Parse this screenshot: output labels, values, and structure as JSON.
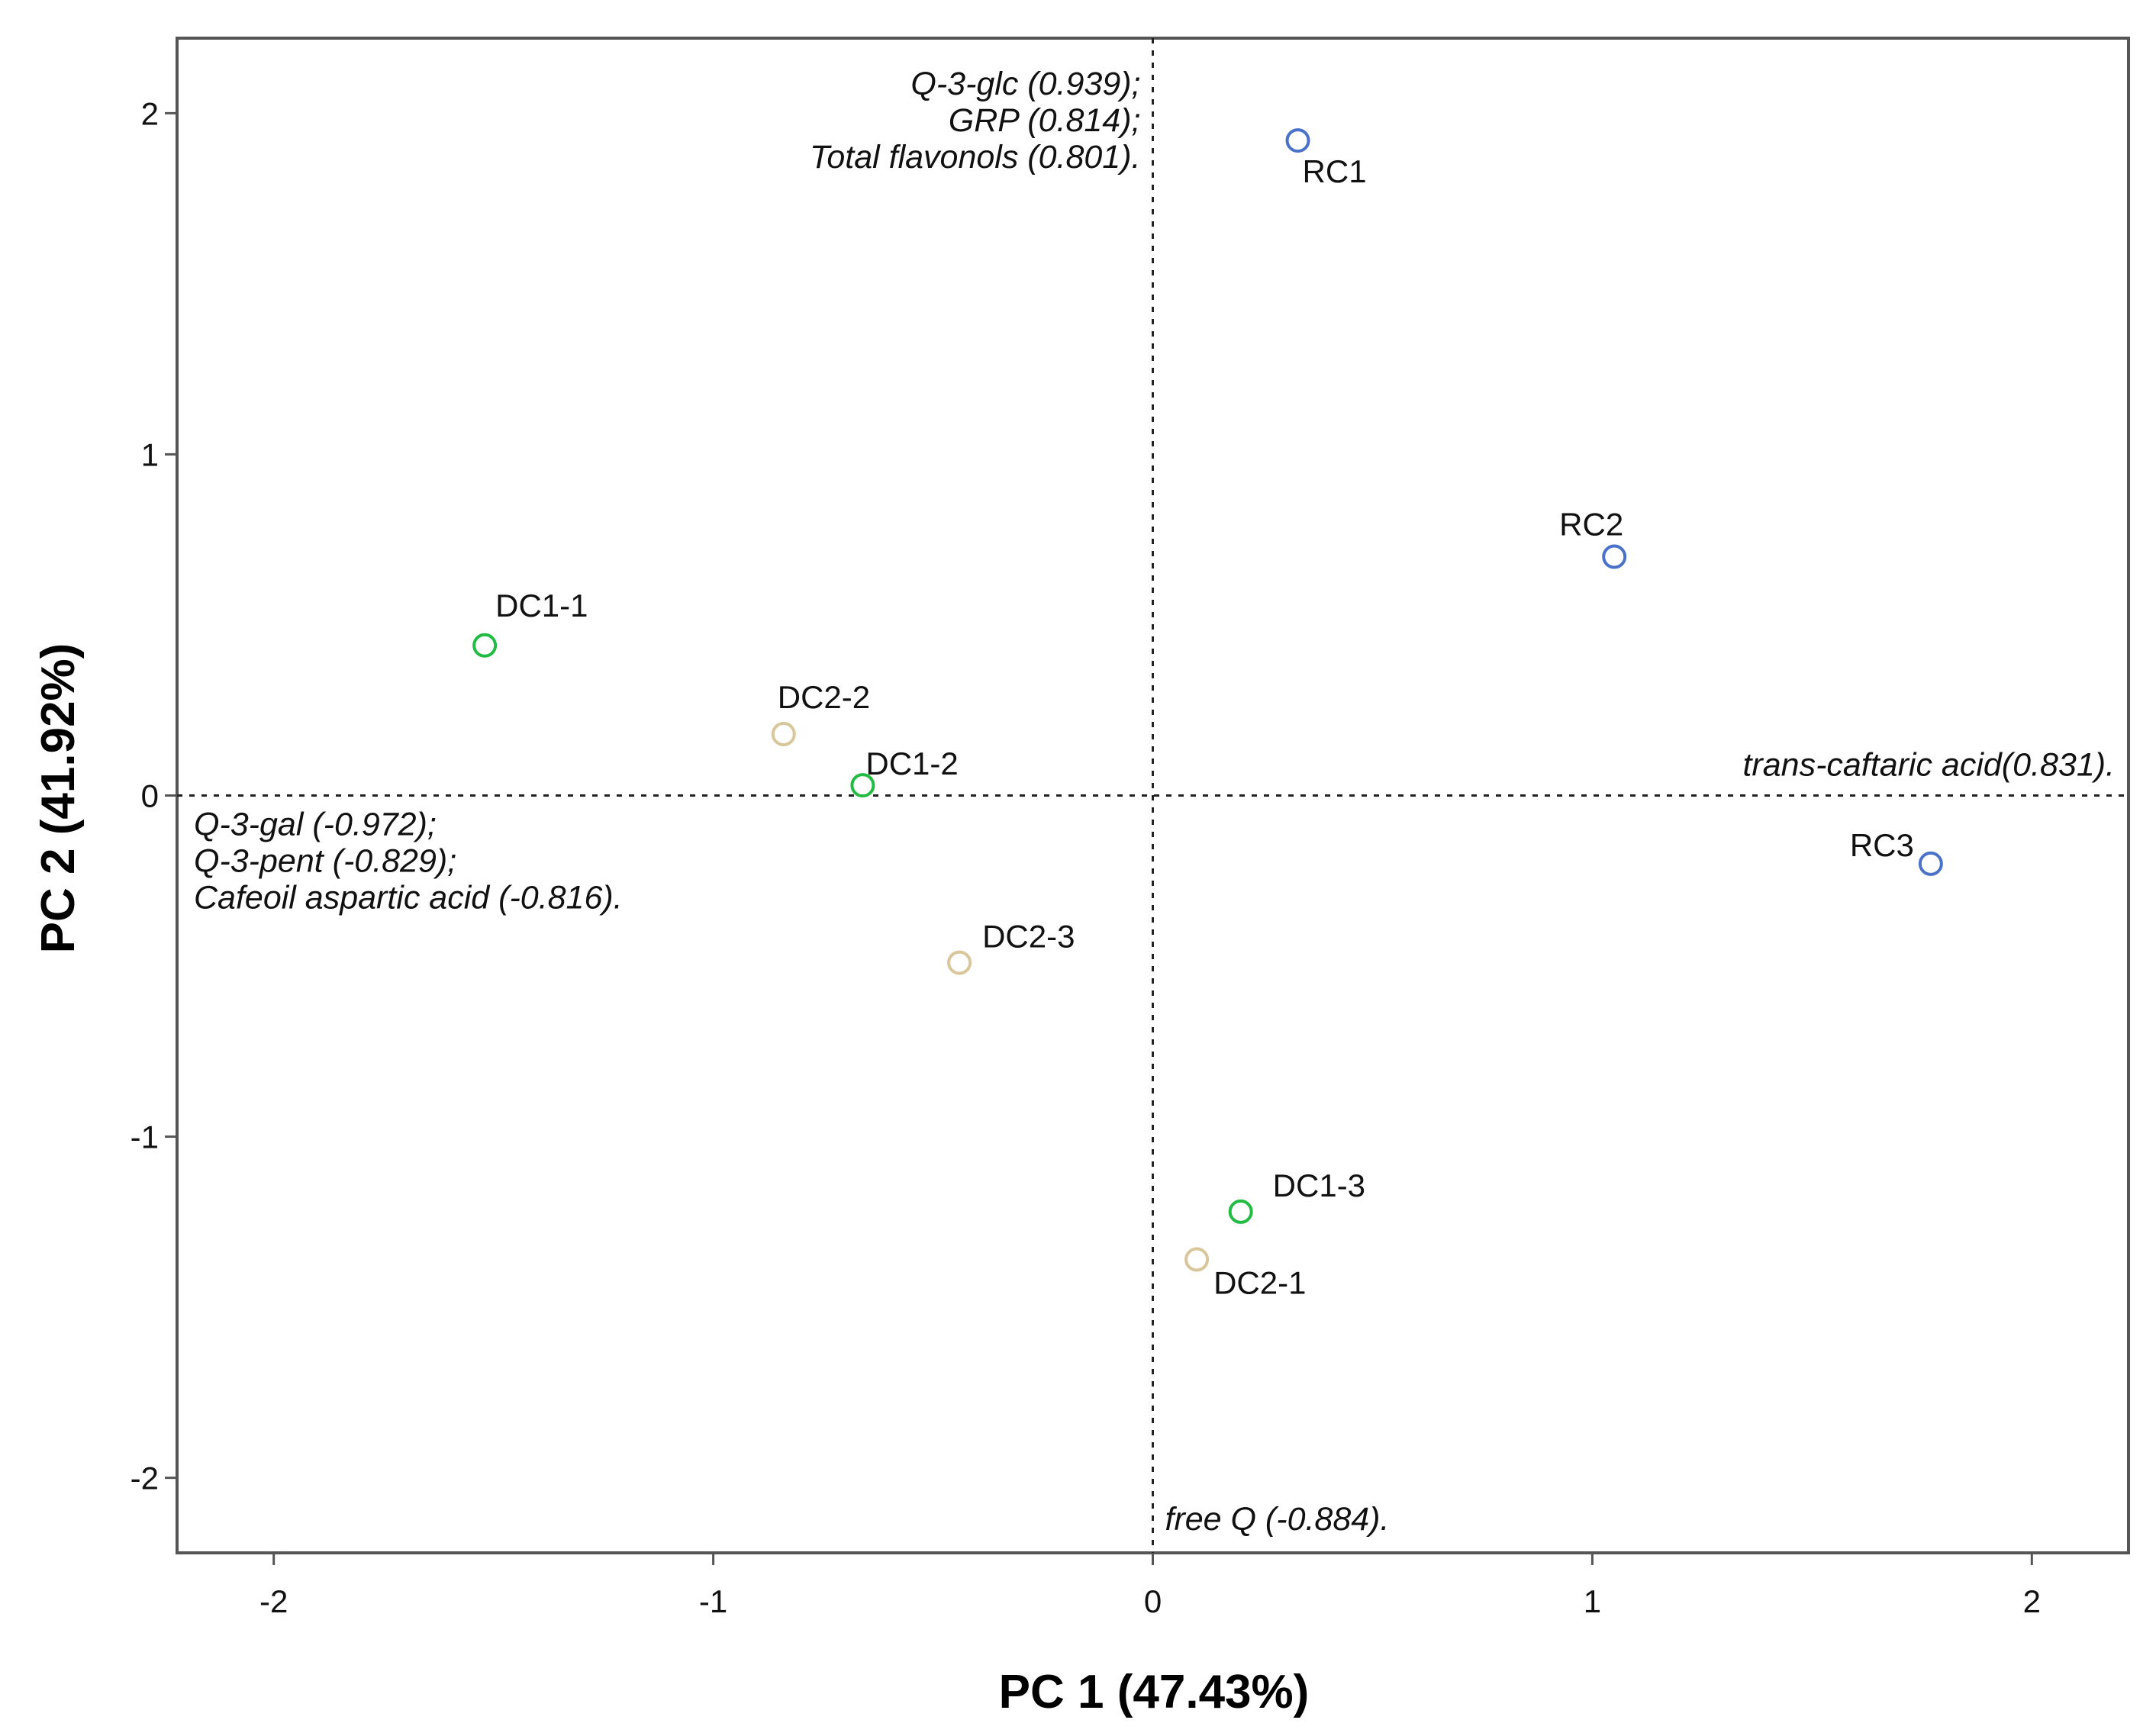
{
  "chart_data": {
    "type": "scatter",
    "title": "",
    "xlabel": "PC 1 (47.43%)",
    "ylabel": "PC 2 (41.92%)",
    "xlim": [
      -2.22,
      2.22
    ],
    "ylim": [
      -2.22,
      2.22
    ],
    "xticks": [
      -2,
      -1,
      0,
      1,
      2
    ],
    "yticks": [
      -2,
      -1,
      0,
      1,
      2
    ],
    "grid": false,
    "reference_lines": {
      "x": 0,
      "y": 0,
      "style": "dotted"
    },
    "series": [
      {
        "name": "RC",
        "color": "#4a72c8",
        "points": [
          {
            "label": "RC1",
            "x": 0.33,
            "y": 1.92
          },
          {
            "label": "RC2",
            "x": 1.05,
            "y": 0.7
          },
          {
            "label": "RC3",
            "x": 1.77,
            "y": -0.2
          }
        ]
      },
      {
        "name": "DC1",
        "color": "#22bb44",
        "points": [
          {
            "label": "DC1-1",
            "x": -1.52,
            "y": 0.44
          },
          {
            "label": "DC1-2",
            "x": -0.66,
            "y": 0.03
          },
          {
            "label": "DC1-3",
            "x": 0.2,
            "y": -1.22
          }
        ]
      },
      {
        "name": "DC2",
        "color": "#d8c79a",
        "points": [
          {
            "label": "DC2-2",
            "x": -0.84,
            "y": 0.18
          },
          {
            "label": "DC2-3",
            "x": -0.44,
            "y": -0.49
          },
          {
            "label": "DC2-1",
            "x": 0.1,
            "y": -1.36
          }
        ]
      }
    ],
    "annotations": {
      "pc2_positive": [
        "Q-3-glc (0.939);",
        "GRP (0.814);",
        "Total flavonols (0.801)."
      ],
      "pc1_positive": [
        "trans-caftaric acid(0.831)."
      ],
      "pc1_negative": [
        "Q-3-gal (-0.972);",
        "Q-3-pent (-0.829);",
        "Cafeoil aspartic acid (-0.816)."
      ],
      "pc2_negative": [
        "free Q (-0.884)."
      ]
    }
  }
}
